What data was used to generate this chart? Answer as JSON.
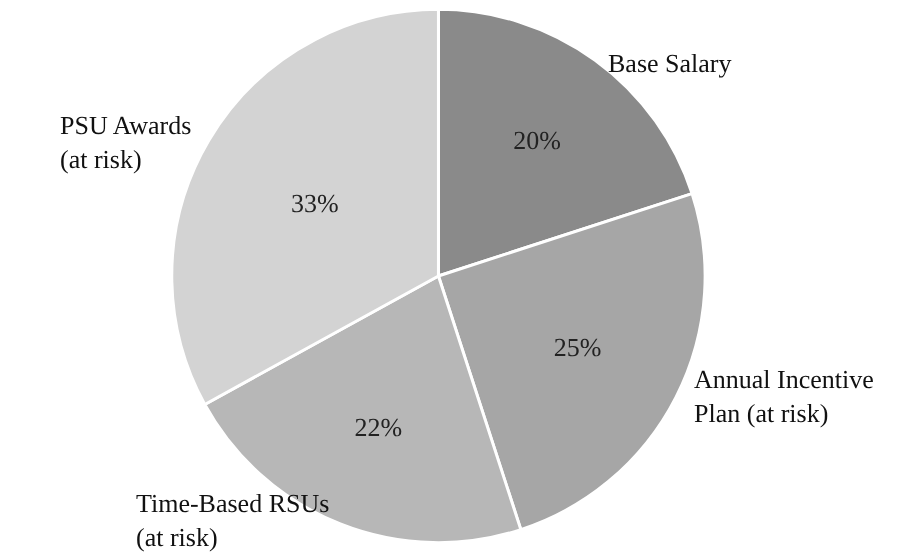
{
  "chart_data": {
    "type": "pie",
    "categories": [
      "Base Salary",
      "Annual Incentive\nPlan (at risk)",
      "Time-Based RSUs\n(at risk)",
      "PSU Awards\n(at risk)"
    ],
    "values": [
      20,
      25,
      22,
      33
    ],
    "value_labels": [
      "20%",
      "25%",
      "22%",
      "33%"
    ],
    "colors": [
      "#8a8a8a",
      "#a6a6a6",
      "#b7b7b7",
      "#d3d3d3"
    ],
    "legend": false
  }
}
